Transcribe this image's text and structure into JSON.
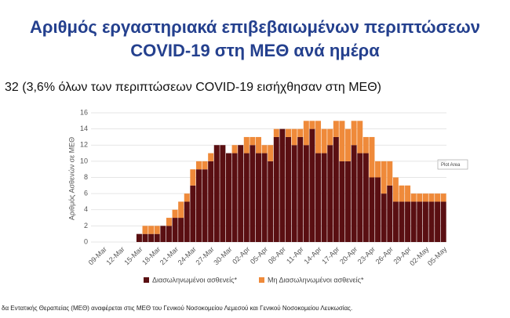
{
  "chart_data": {
    "type": "stacked_bar",
    "title": [
      "Αριθμός εργαστηριακά επιβεβαιωμένων περιπτώσεων",
      "COVID-19 στη ΜΕΘ ανά ημέρα"
    ],
    "subtitle": "32 (3,6% όλων των περιπτώσεων COVID-19 εισήχθησαν στη ΜΕΘ)",
    "y_label": "Αριθμός Ασθενών σε ΜΕΘ",
    "annotation": "Plot Area",
    "footnote": "δα Εντατικής Θεραπείας (ΜΕΘ) αναφέρεται στις ΜΕΘ του Γενικού Νοσοκομείου Λεμεσού και Γενικού Νοσοκομείου Λευκωσίας.",
    "categories": [
      "09-Mar",
      null,
      null,
      "12-Mar",
      null,
      null,
      "15-Mar",
      null,
      null,
      "18-Mar",
      null,
      null,
      "21-Mar",
      null,
      null,
      "24-Mar",
      null,
      null,
      "27-Mar",
      null,
      null,
      "30-Mar",
      null,
      null,
      "02-Apr",
      null,
      null,
      "05-Apr",
      null,
      null,
      "08-Apr",
      null,
      null,
      "11-Apr",
      null,
      null,
      "14-Apr",
      null,
      null,
      "17-Apr",
      null,
      null,
      "20-Apr",
      null,
      null,
      "23-Apr",
      null,
      null,
      "26-Apr",
      null,
      null,
      "29-Apr",
      null,
      null,
      "02-May",
      null,
      null,
      "05-May"
    ],
    "series": [
      {
        "name": "Διασωληνωμένοι ασθενείς*",
        "color": "#5a0f12",
        "values": [
          0,
          0,
          0,
          0,
          0,
          0,
          1,
          1,
          1,
          1,
          2,
          2,
          3,
          3,
          5,
          7,
          9,
          9,
          10,
          12,
          12,
          11,
          11,
          12,
          11,
          12,
          11,
          11,
          10,
          13,
          14,
          13,
          12,
          13,
          12,
          14,
          11,
          11,
          12,
          13,
          10,
          10,
          12,
          11,
          11,
          8,
          8,
          6,
          7,
          5,
          5,
          5,
          5,
          5,
          5,
          5,
          5,
          5
        ]
      },
      {
        "name": "Μη Διασωληνωμένοι ασθενείς*",
        "color": "#ef8a3a",
        "values": [
          0,
          0,
          0,
          0,
          0,
          0,
          0,
          1,
          1,
          1,
          0,
          1,
          1,
          2,
          1,
          2,
          1,
          1,
          1,
          0,
          0,
          0,
          1,
          0,
          2,
          1,
          2,
          1,
          2,
          1,
          0,
          1,
          2,
          1,
          3,
          1,
          4,
          3,
          2,
          2,
          5,
          4,
          3,
          4,
          2,
          5,
          2,
          4,
          3,
          3,
          2,
          2,
          1,
          1,
          1,
          1,
          1,
          1
        ]
      }
    ],
    "ylim": [
      0,
      16
    ],
    "yticks": [
      0,
      2,
      4,
      6,
      8,
      10,
      12,
      14,
      16
    ],
    "grid": true
  }
}
